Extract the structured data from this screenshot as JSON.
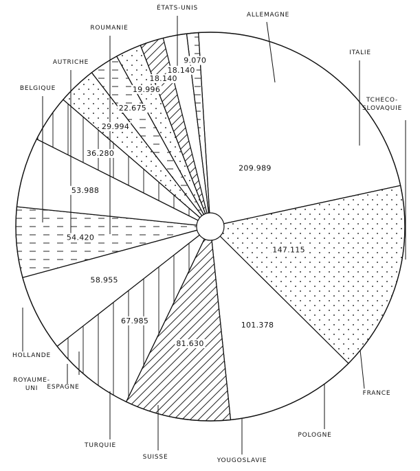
{
  "chart_data": {
    "type": "pie",
    "title": "",
    "slices": [
      {
        "label": "ÉTATS-UNIS",
        "value": 209989,
        "value_label": "209.989",
        "pattern": "blank"
      },
      {
        "label": "ALLEMAGNE",
        "value": 147115,
        "value_label": "147.115",
        "pattern": "dots"
      },
      {
        "label": "ITALIE",
        "value": 101378,
        "value_label": "101.378",
        "pattern": "blank"
      },
      {
        "label": "TCHECO-SLOVAQUIE",
        "value": 81630,
        "value_label": "81.630",
        "pattern": "diagonal"
      },
      {
        "label": "FRANCE",
        "value": 67985,
        "value_label": "67.985",
        "pattern": "vertical"
      },
      {
        "label": "POLOGNE",
        "value": 58955,
        "value_label": "58.955",
        "pattern": "blank"
      },
      {
        "label": "YOUGOSLAVIE",
        "value": 54420,
        "value_label": "54.420",
        "pattern": "dashes"
      },
      {
        "label": "SUISSE",
        "value": 53988,
        "value_label": "53.988",
        "pattern": "blank"
      },
      {
        "label": "TURQUIE",
        "value": 36280,
        "value_label": "36.280",
        "pattern": "vertical"
      },
      {
        "label": "ESPAGNE",
        "value": 29994,
        "value_label": "29.994",
        "pattern": "dots"
      },
      {
        "label": "ROYAUME-UNI",
        "value": 22675,
        "value_label": "22.675",
        "pattern": "dashes"
      },
      {
        "label": "HOLLANDE",
        "value": 19996,
        "value_label": "19.996",
        "pattern": "dots"
      },
      {
        "label": "BELGIQUE",
        "value": 18140,
        "value_label": "18.140",
        "pattern": "diagonal"
      },
      {
        "label": "AUTRICHE",
        "value": 18140,
        "value_label": "18.140",
        "pattern": "blank"
      },
      {
        "label": "ROUMANIE",
        "value": 9070,
        "value_label": "9.070",
        "pattern": "dashes"
      }
    ],
    "start_label": "ÉTATS-UNIS",
    "direction": "clockwise"
  }
}
